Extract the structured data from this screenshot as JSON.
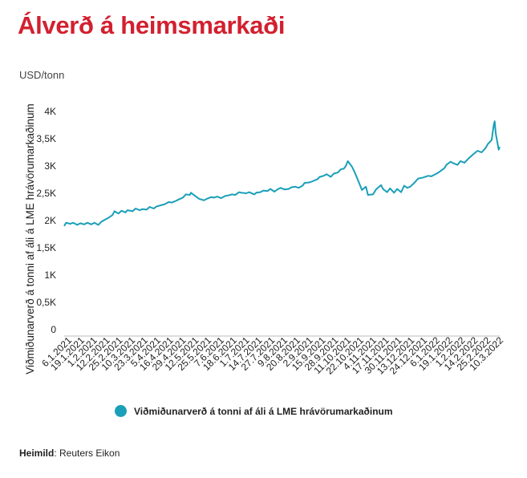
{
  "header": {
    "title": "Álverð á heimsmarkaði",
    "unit": "USD/tonn"
  },
  "colors": {
    "title": "#d2202f",
    "series": "#1a9fb8",
    "axis": "#bbbbbb"
  },
  "legend": {
    "label": "Viðmiðunarverð á tonni af áli á LME hrávörumarkaðinum"
  },
  "source": {
    "key": "Heimild",
    "value": ": Reuters Eikon"
  },
  "chart_data": {
    "type": "line",
    "title": "Álverð á heimsmarkaði",
    "xlabel": "",
    "ylabel": "Viðmiðunarverð á tonni af áli á LME hrávörumarkaðinum",
    "ylim": [
      0,
      4000
    ],
    "y_ticks": [
      {
        "value": 0,
        "label": "0"
      },
      {
        "value": 500,
        "label": "0,5K"
      },
      {
        "value": 1000,
        "label": "1K"
      },
      {
        "value": 1500,
        "label": "1,5K"
      },
      {
        "value": 2000,
        "label": "2K"
      },
      {
        "value": 2500,
        "label": "2,5K"
      },
      {
        "value": 3000,
        "label": "3K"
      },
      {
        "value": 3500,
        "label": "3,5K"
      },
      {
        "value": 4000,
        "label": "4K"
      }
    ],
    "categories": [
      "6.1.2021",
      "19.1.2021",
      "1.2.2021",
      "12.2.2021",
      "25.2.2021",
      "10.3.2021",
      "23.3.2021",
      "5.4.2021",
      "16.4.2021",
      "29.4.2021",
      "12.5.2021",
      "25.5.2021",
      "7.6.2021",
      "18.6.2021",
      "1.7.2021",
      "14.7.2021",
      "27.7.2021",
      "9.8.2021",
      "20.8.2021",
      "2.9.2021",
      "15.9.2021",
      "28.9.2021",
      "11.10.2021",
      "22.10.2021",
      "4.11.2021",
      "17.11.2021",
      "30.11.2021",
      "13.12.2021",
      "24.12.2021",
      "6.1.2022",
      "19.1.2022",
      "1.2.2022",
      "14.2.2022",
      "25.2.2022",
      "10.3.2022"
    ],
    "grid": false,
    "legend_position": "bottom",
    "series": [
      {
        "name": "Viðmiðunarverð á tonni af áli á LME hrávörumarkaðinum",
        "x": [
          "2021-01-06",
          "2021-01-08",
          "2021-01-12",
          "2021-01-15",
          "2021-01-19",
          "2021-01-22",
          "2021-01-26",
          "2021-01-29",
          "2021-02-02",
          "2021-02-05",
          "2021-02-09",
          "2021-02-12",
          "2021-02-16",
          "2021-02-19",
          "2021-02-23",
          "2021-02-25",
          "2021-03-01",
          "2021-03-04",
          "2021-03-08",
          "2021-03-10",
          "2021-03-15",
          "2021-03-18",
          "2021-03-22",
          "2021-03-25",
          "2021-03-29",
          "2021-04-01",
          "2021-04-05",
          "2021-04-08",
          "2021-04-12",
          "2021-04-16",
          "2021-04-20",
          "2021-04-23",
          "2021-04-27",
          "2021-04-29",
          "2021-05-04",
          "2021-05-07",
          "2021-05-11",
          "2021-05-12",
          "2021-05-17",
          "2021-05-20",
          "2021-05-25",
          "2021-05-28",
          "2021-06-01",
          "2021-06-04",
          "2021-06-07",
          "2021-06-11",
          "2021-06-15",
          "2021-06-18",
          "2021-06-22",
          "2021-06-25",
          "2021-06-29",
          "2021-07-01",
          "2021-07-06",
          "2021-07-09",
          "2021-07-14",
          "2021-07-16",
          "2021-07-20",
          "2021-07-23",
          "2021-07-27",
          "2021-07-30",
          "2021-08-03",
          "2021-08-06",
          "2021-08-09",
          "2021-08-13",
          "2021-08-17",
          "2021-08-20",
          "2021-08-24",
          "2021-08-27",
          "2021-08-31",
          "2021-09-02",
          "2021-09-07",
          "2021-09-10",
          "2021-09-15",
          "2021-09-17",
          "2021-09-21",
          "2021-09-24",
          "2021-09-28",
          "2021-10-01",
          "2021-10-05",
          "2021-10-08",
          "2021-10-11",
          "2021-10-13",
          "2021-10-15",
          "2021-10-19",
          "2021-10-22",
          "2021-10-26",
          "2021-10-29",
          "2021-11-02",
          "2021-11-04",
          "2021-11-09",
          "2021-11-12",
          "2021-11-17",
          "2021-11-19",
          "2021-11-23",
          "2021-11-26",
          "2021-11-30",
          "2021-12-03",
          "2021-12-07",
          "2021-12-10",
          "2021-12-13",
          "2021-12-16",
          "2021-12-20",
          "2021-12-24",
          "2021-12-29",
          "2022-01-03",
          "2022-01-06",
          "2022-01-10",
          "2022-01-13",
          "2022-01-19",
          "2022-01-21",
          "2022-01-25",
          "2022-01-28",
          "2022-02-01",
          "2022-02-04",
          "2022-02-08",
          "2022-02-11",
          "2022-02-14",
          "2022-02-17",
          "2022-02-21",
          "2022-02-25",
          "2022-03-01",
          "2022-03-03",
          "2022-03-07",
          "2022-03-09",
          "2022-03-10",
          "2022-03-11",
          "2022-03-14",
          "2022-03-15"
        ],
        "values": [
          1900,
          1960,
          1940,
          1960,
          1920,
          1950,
          1930,
          1960,
          1930,
          1960,
          1920,
          1980,
          2020,
          2050,
          2100,
          2170,
          2130,
          2180,
          2150,
          2190,
          2170,
          2220,
          2190,
          2210,
          2200,
          2250,
          2220,
          2260,
          2280,
          2300,
          2340,
          2330,
          2360,
          2380,
          2420,
          2480,
          2470,
          2510,
          2440,
          2400,
          2370,
          2400,
          2430,
          2420,
          2440,
          2410,
          2450,
          2460,
          2480,
          2470,
          2520,
          2510,
          2500,
          2520,
          2480,
          2510,
          2520,
          2550,
          2540,
          2580,
          2530,
          2570,
          2600,
          2570,
          2580,
          2610,
          2620,
          2600,
          2640,
          2690,
          2700,
          2720,
          2760,
          2800,
          2820,
          2850,
          2800,
          2860,
          2880,
          2940,
          2950,
          3000,
          3090,
          2990,
          2880,
          2700,
          2560,
          2620,
          2470,
          2480,
          2570,
          2650,
          2580,
          2520,
          2590,
          2510,
          2580,
          2520,
          2640,
          2600,
          2620,
          2690,
          2770,
          2790,
          2820,
          2810,
          2850,
          2880,
          2960,
          3020,
          3080,
          3050,
          3020,
          3090,
          3060,
          3120,
          3170,
          3220,
          3280,
          3250,
          3330,
          3400,
          3480,
          3750,
          3820,
          3600,
          3300,
          3350
        ]
      }
    ]
  }
}
